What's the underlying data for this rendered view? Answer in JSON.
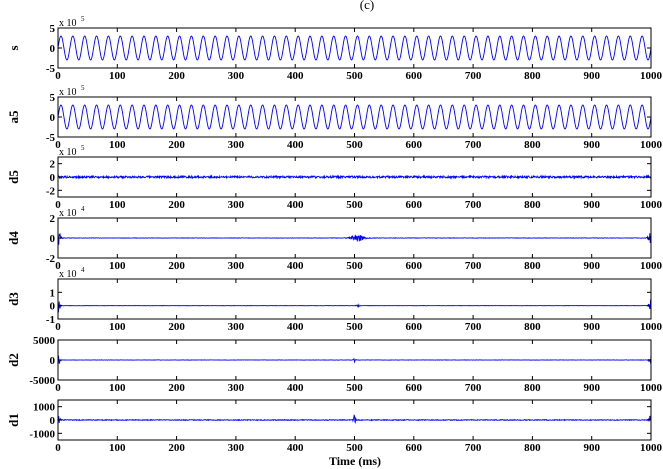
{
  "figure": {
    "title": "(c)",
    "xlabel": "Time (ms)"
  },
  "chart_data": {
    "type": "line",
    "x_ticks": [
      0,
      100,
      200,
      300,
      400,
      500,
      600,
      700,
      800,
      900,
      1000
    ],
    "xlim": [
      0,
      1000
    ],
    "line_color": "#0000ff",
    "grid": false,
    "panels": [
      {
        "name": "s",
        "exponent": "5",
        "ylim": [
          -5,
          5
        ],
        "yticks": [
          -5,
          0,
          5
        ],
        "ytick_labels": [
          "-5",
          "0",
          "5"
        ],
        "signal": {
          "kind": "sine",
          "amplitude": 3,
          "cycles": 50,
          "noise": 0
        }
      },
      {
        "name": "a5",
        "exponent": "5",
        "ylim": [
          -5,
          5
        ],
        "yticks": [
          -5,
          0,
          5
        ],
        "ytick_labels": [
          "-5",
          "0",
          "5"
        ],
        "signal": {
          "kind": "sine",
          "amplitude": 3,
          "cycles": 50,
          "noise": 0
        }
      },
      {
        "name": "d5",
        "exponent": "5",
        "ylim": [
          -3,
          3
        ],
        "yticks": [
          -2,
          0,
          2
        ],
        "ytick_labels": [
          "-2",
          "0",
          "2"
        ],
        "signal": {
          "kind": "noise",
          "amplitude": 0.15,
          "bursts": []
        }
      },
      {
        "name": "d4",
        "exponent": "4",
        "ylim": [
          -2,
          2
        ],
        "yticks": [
          -2,
          0,
          2
        ],
        "ytick_labels": [
          "-2",
          "0",
          "2"
        ],
        "signal": {
          "kind": "noise",
          "amplitude": 0.02,
          "bursts": [
            {
              "x": 0,
              "width": 4,
              "amplitude": 1.0
            },
            {
              "x": 505,
              "width": 12,
              "amplitude": 0.35
            },
            {
              "x": 1000,
              "width": 4,
              "amplitude": 1.0
            }
          ]
        }
      },
      {
        "name": "d3",
        "exponent": "4",
        "ylim": [
          -1,
          2
        ],
        "yticks": [
          -1,
          0,
          1
        ],
        "ytick_labels": [
          "-1",
          "0",
          "1"
        ],
        "signal": {
          "kind": "noise",
          "amplitude": 0.01,
          "bursts": [
            {
              "x": 0,
              "width": 3,
              "amplitude": 0.6
            },
            {
              "x": 505,
              "width": 3,
              "amplitude": 0.1
            },
            {
              "x": 1000,
              "width": 3,
              "amplitude": 0.6
            }
          ]
        }
      },
      {
        "name": "d2",
        "exponent": "",
        "ylim": [
          -5000,
          5000
        ],
        "yticks": [
          -5000,
          0,
          5000
        ],
        "ytick_labels": [
          "-5000",
          "0",
          "5000"
        ],
        "signal": {
          "kind": "noise",
          "amplitude": 40,
          "bursts": [
            {
              "x": 0,
              "width": 3,
              "amplitude": 1500
            },
            {
              "x": 500,
              "width": 2,
              "amplitude": 600
            },
            {
              "x": 1000,
              "width": 3,
              "amplitude": 1500
            }
          ]
        }
      },
      {
        "name": "d1",
        "exponent": "",
        "ylim": [
          -1500,
          1500
        ],
        "yticks": [
          -1000,
          0,
          1000
        ],
        "ytick_labels": [
          "-1000",
          "0",
          "1000"
        ],
        "signal": {
          "kind": "noise",
          "amplitude": 30,
          "bursts": [
            {
              "x": 0,
              "width": 3,
              "amplitude": 500
            },
            {
              "x": 500,
              "width": 2,
              "amplitude": 400
            },
            {
              "x": 1000,
              "width": 3,
              "amplitude": 500
            }
          ]
        }
      }
    ]
  }
}
